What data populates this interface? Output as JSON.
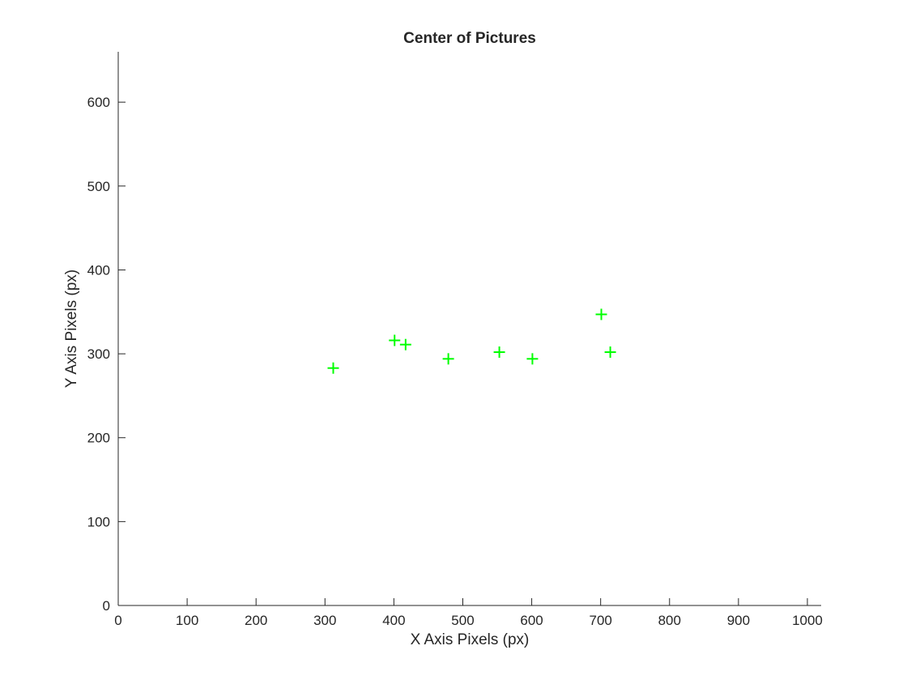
{
  "chart_data": {
    "type": "scatter",
    "title": "Center of Pictures",
    "xlabel": "X Axis Pixels (px)",
    "ylabel": "Y Axis Pixels (px)",
    "xlim": [
      0,
      1020
    ],
    "ylim": [
      0,
      660
    ],
    "xticks": [
      0,
      100,
      200,
      300,
      400,
      500,
      600,
      700,
      800,
      900,
      1000
    ],
    "yticks": [
      0,
      100,
      200,
      300,
      400,
      500,
      600
    ],
    "grid": false,
    "marker": "+",
    "marker_color": "#00ff00",
    "series": [
      {
        "x": [
          312,
          401,
          417,
          479,
          553,
          601,
          701,
          714
        ],
        "y": [
          283,
          316,
          311,
          294,
          302,
          294,
          347,
          302
        ]
      }
    ]
  }
}
